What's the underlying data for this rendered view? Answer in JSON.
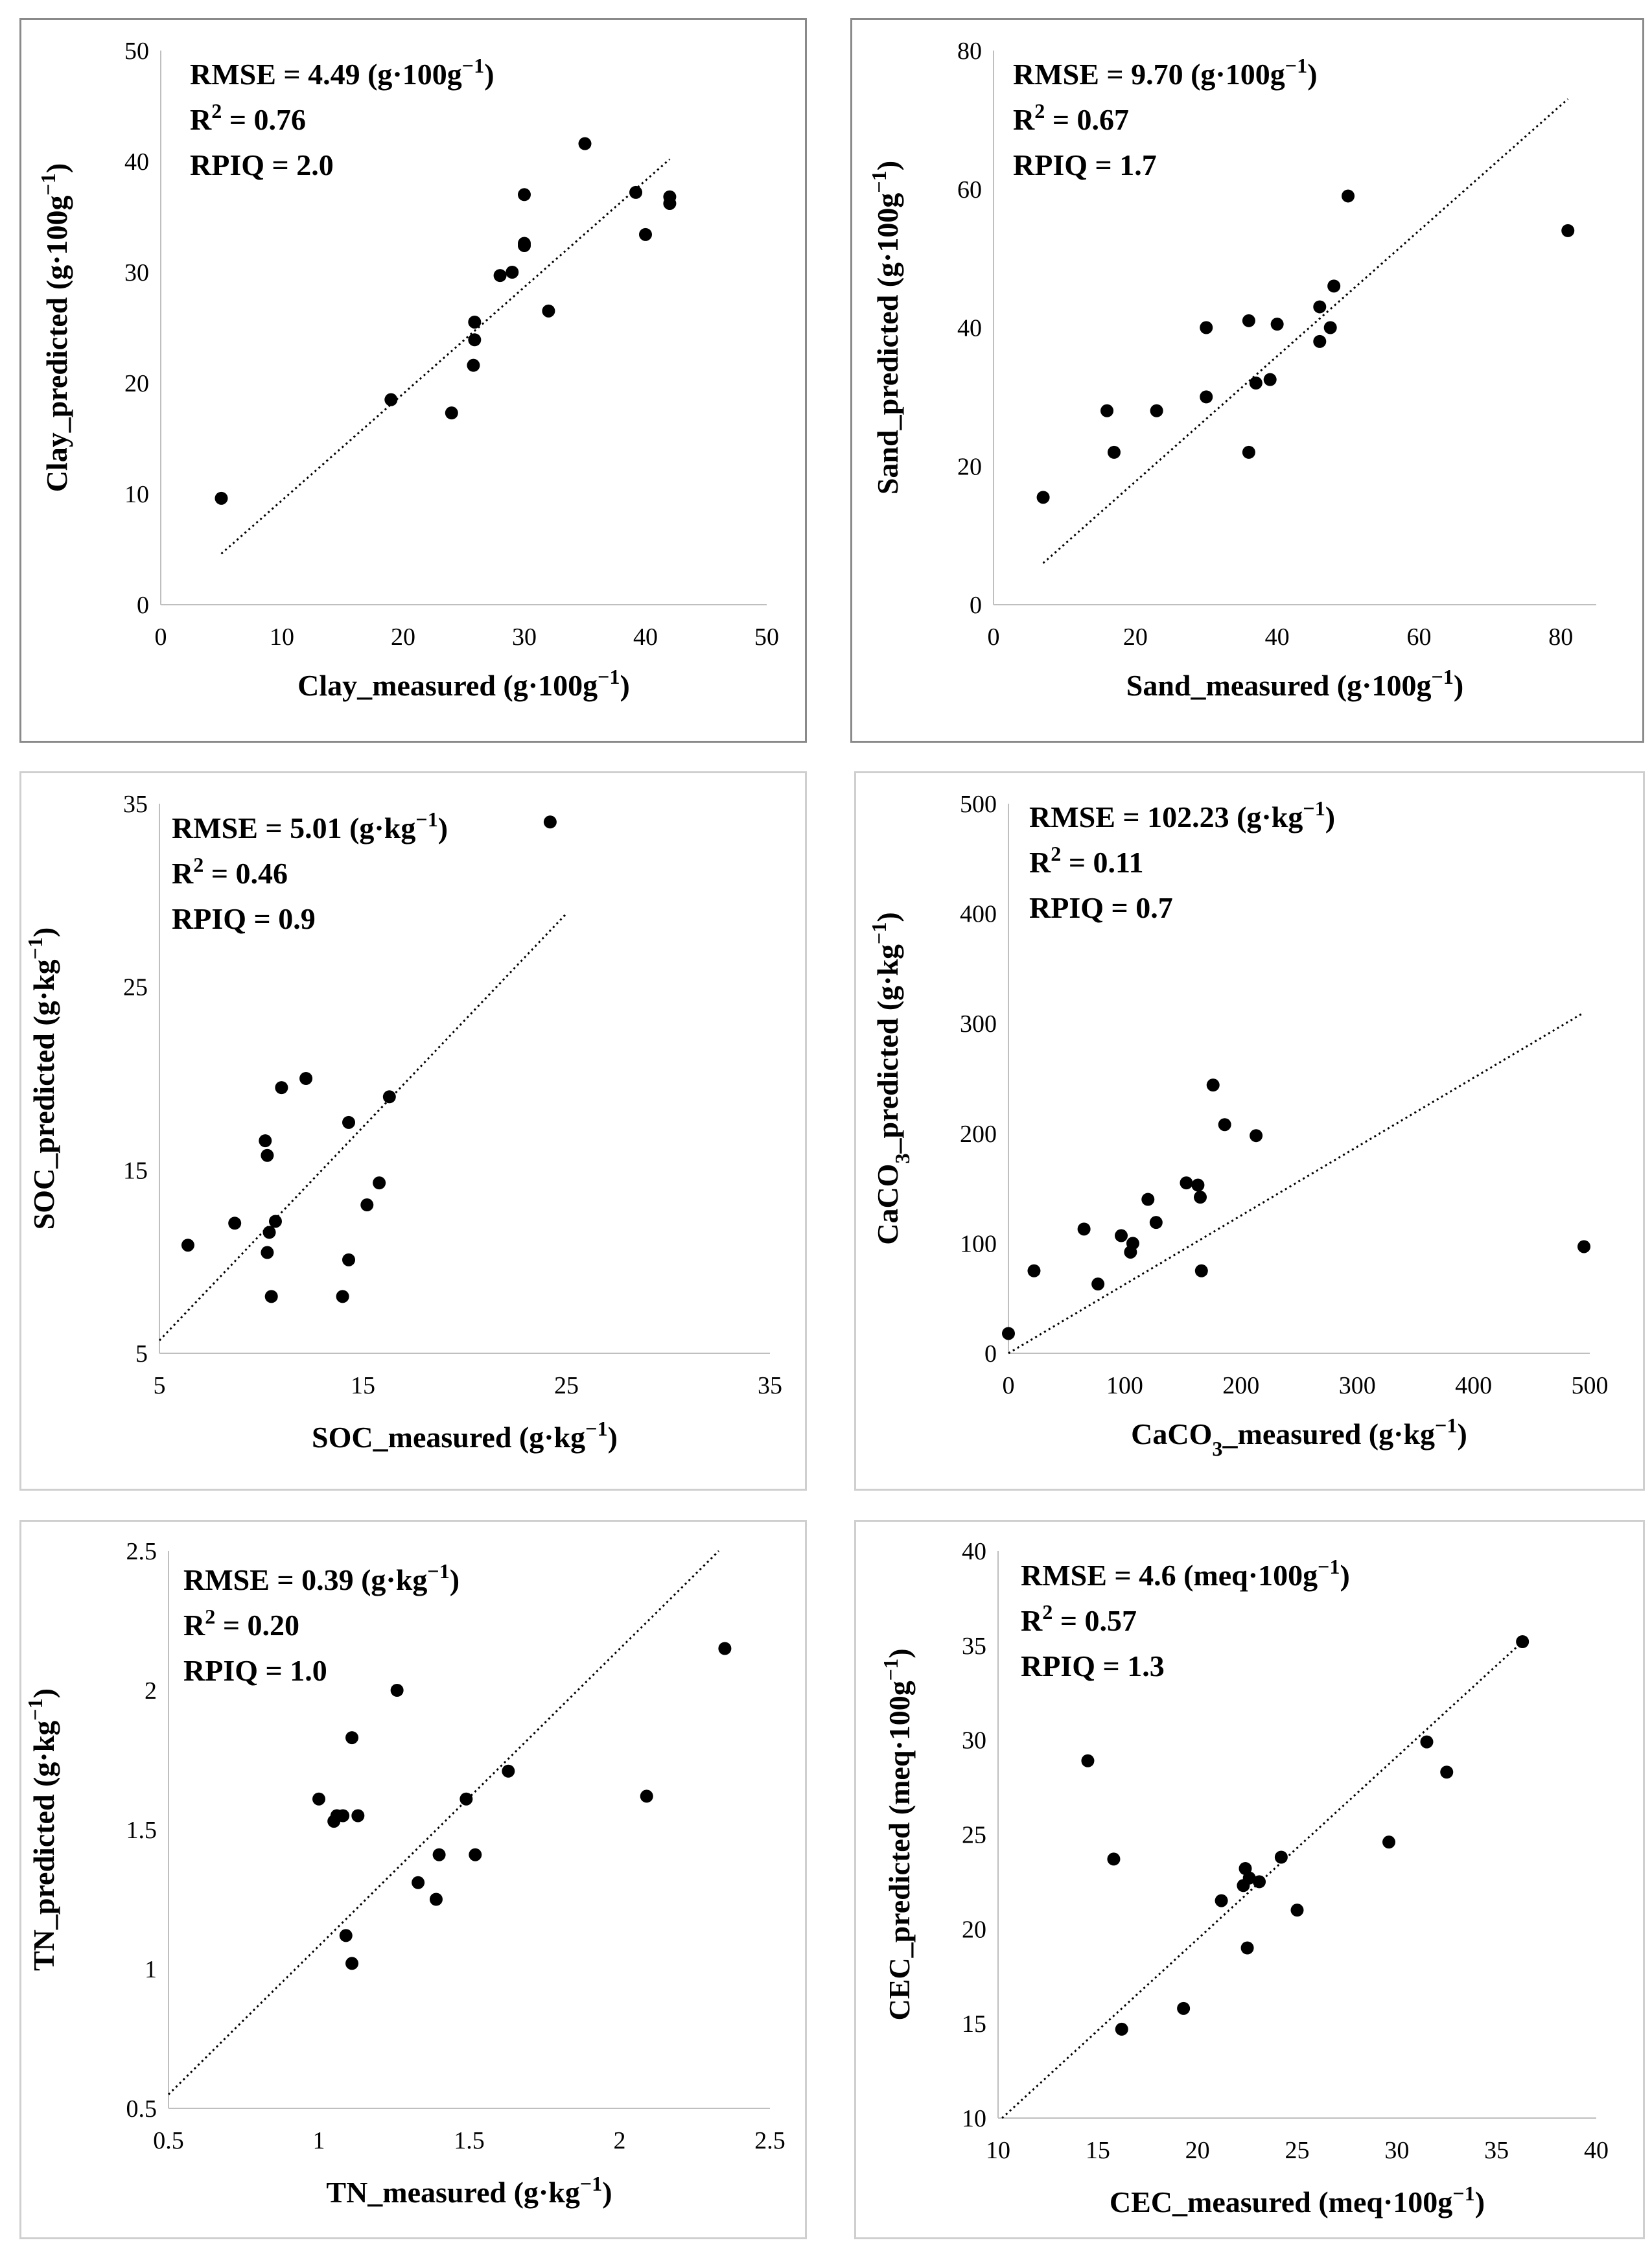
{
  "chart_data": [
    {
      "type": "scatter",
      "id": "clay",
      "title": "",
      "xlabel": "Clay_measured (g·100g⁻¹)",
      "ylabel": "Clay_predicted (g·100g⁻¹)",
      "xlim": [
        0,
        50
      ],
      "ylim": [
        0,
        50
      ],
      "xticks": [
        0,
        10,
        20,
        30,
        40,
        50
      ],
      "yticks": [
        0,
        10,
        20,
        30,
        40,
        50
      ],
      "xtick_labels": [
        "0",
        "10",
        "20",
        "30",
        "40",
        "50"
      ],
      "ytick_labels": [
        "0",
        "10",
        "20",
        "30",
        "40",
        "50"
      ],
      "stats": [
        "RMSE = 4.49 (g·100g⁻¹)",
        "R² = 0.76",
        "RPIQ = 2.0"
      ],
      "trendline": {
        "x": [
          5,
          42
        ],
        "y": [
          4.6,
          40.2
        ]
      },
      "points": {
        "x": [
          5,
          19,
          24,
          25.8,
          25.9,
          25.9,
          28,
          29,
          30,
          30,
          30,
          32,
          35,
          39.2,
          40,
          42,
          42
        ],
        "y": [
          9.6,
          18.5,
          17.3,
          21.6,
          23.9,
          25.5,
          29.7,
          30,
          32.4,
          32.6,
          37,
          26.5,
          41.6,
          37.2,
          33.4,
          36.2,
          36.8
        ]
      }
    },
    {
      "type": "scatter",
      "id": "sand",
      "title": "",
      "xlabel": "Sand_measured (g·100g⁻¹)",
      "ylabel": "Sand_predicted (g·100g⁻¹)",
      "xlim": [
        0,
        85
      ],
      "ylim": [
        0,
        80
      ],
      "xticks": [
        0,
        20,
        40,
        60,
        80
      ],
      "yticks": [
        0,
        20,
        40,
        60,
        80
      ],
      "xtick_labels": [
        "0",
        "20",
        "40",
        "60",
        "80"
      ],
      "ytick_labels": [
        "0",
        "20",
        "40",
        "60",
        "80"
      ],
      "stats": [
        "RMSE = 9.70 (g·100g⁻¹)",
        "R² = 0.67",
        "RPIQ = 1.7"
      ],
      "trendline": {
        "x": [
          7,
          81
        ],
        "y": [
          6,
          73
        ]
      },
      "points": {
        "x": [
          7,
          16,
          17,
          23,
          30,
          30,
          36,
          36,
          37,
          39,
          40,
          46,
          46,
          47.5,
          48,
          50,
          81
        ],
        "y": [
          15.5,
          28,
          22,
          28,
          30,
          40,
          22,
          41,
          32,
          32.5,
          40.5,
          38,
          43,
          40,
          46,
          59,
          54
        ]
      }
    },
    {
      "type": "scatter",
      "id": "soc",
      "title": "",
      "xlabel": "SOC_measured (g·kg⁻¹)",
      "ylabel": "SOC_predicted (g·kg⁻¹)",
      "xlim": [
        5,
        35
      ],
      "ylim": [
        5,
        35
      ],
      "xticks": [
        5,
        15,
        25,
        35
      ],
      "yticks": [
        5,
        15,
        25,
        35
      ],
      "xtick_labels": [
        "5",
        "15",
        "25",
        "35"
      ],
      "ytick_labels": [
        "5",
        "15",
        "25",
        "35"
      ],
      "stats": [
        "RMSE = 5.01 (g·kg⁻¹)",
        "R² = 0.46",
        "RPIQ = 0.9"
      ],
      "trendline": {
        "x": [
          5,
          25
        ],
        "y": [
          5.7,
          29
        ]
      },
      "points": {
        "x": [
          6.4,
          8.7,
          10.2,
          10.3,
          10.3,
          10.4,
          10.5,
          10.7,
          11,
          12.2,
          14,
          14.3,
          14.3,
          15.2,
          15.8,
          16.3,
          24.2
        ],
        "y": [
          10.9,
          12.1,
          16.6,
          15.8,
          10.5,
          11.6,
          8.1,
          12.2,
          19.5,
          20,
          8.1,
          10.1,
          17.6,
          13.1,
          14.3,
          19,
          34
        ]
      }
    },
    {
      "type": "scatter",
      "id": "caco3",
      "title": "",
      "xlabel": "CaCO₃_measured (g·kg⁻¹)",
      "ylabel": "CaCO₃_predicted (g·kg⁻¹)",
      "xlim": [
        0,
        500
      ],
      "ylim": [
        0,
        500
      ],
      "xticks": [
        0,
        100,
        200,
        300,
        400,
        500
      ],
      "yticks": [
        0,
        100,
        200,
        300,
        400,
        500
      ],
      "xtick_labels": [
        "0",
        "100",
        "200",
        "300",
        "400",
        "500"
      ],
      "ytick_labels": [
        "0",
        "100",
        "200",
        "300",
        "400",
        "500"
      ],
      "stats": [
        "RMSE = 102.23 (g·kg⁻¹)",
        "R² = 0.11",
        "RPIQ =  0.7"
      ],
      "trendline": {
        "x": [
          0,
          495
        ],
        "y": [
          0,
          310
        ]
      },
      "points": {
        "x": [
          0,
          22,
          65,
          77,
          97,
          105,
          107,
          120,
          127,
          153,
          163,
          165,
          166,
          176,
          186,
          213,
          495
        ],
        "y": [
          18,
          75,
          113,
          63,
          107,
          92,
          100,
          140,
          119,
          155,
          153,
          142,
          75,
          244,
          208,
          198,
          97
        ]
      }
    },
    {
      "type": "scatter",
      "id": "tn",
      "title": "",
      "xlabel": "TN_measured (g·kg⁻¹)",
      "ylabel": "TN_predicted (g·kg⁻¹)",
      "xlim": [
        0.5,
        2.5
      ],
      "ylim": [
        0.5,
        2.5
      ],
      "xticks": [
        0.5,
        1,
        1.5,
        2,
        2.5
      ],
      "yticks": [
        0.5,
        1,
        1.5,
        2,
        2.5
      ],
      "xtick_labels": [
        "0.5",
        "1",
        "1.5",
        "2",
        "2.5"
      ],
      "ytick_labels": [
        "0.5",
        "1",
        "1.5",
        "2",
        "2.5"
      ],
      "stats": [
        "RMSE = 0.39 (g·kg⁻¹)",
        "R² = 0.20",
        "RPIQ = 1.0"
      ],
      "trendline": {
        "x": [
          0.5,
          2.33
        ],
        "y": [
          0.55,
          2.5
        ]
      },
      "points": {
        "x": [
          1,
          1.05,
          1.06,
          1.08,
          1.09,
          1.11,
          1.11,
          1.13,
          1.26,
          1.33,
          1.39,
          1.4,
          1.49,
          1.52,
          1.63,
          2.09,
          2.35
        ],
        "y": [
          1.61,
          1.53,
          1.55,
          1.55,
          1.12,
          1.02,
          1.83,
          1.55,
          2,
          1.31,
          1.25,
          1.41,
          1.61,
          1.41,
          1.71,
          1.62,
          2.15
        ]
      }
    },
    {
      "type": "scatter",
      "id": "cec",
      "title": "",
      "xlabel": "CEC_measured (meq·100g⁻¹)",
      "ylabel": "CEC_predicted (meq·100g⁻¹)",
      "xlim": [
        10,
        40
      ],
      "ylim": [
        10,
        40
      ],
      "xticks": [
        10,
        15,
        20,
        25,
        30,
        35,
        40
      ],
      "yticks": [
        10,
        15,
        20,
        25,
        30,
        35,
        40
      ],
      "xtick_labels": [
        "10",
        "15",
        "20",
        "25",
        "30",
        "35",
        "40"
      ],
      "ytick_labels": [
        "10",
        "15",
        "20",
        "25",
        "30",
        "35",
        "40"
      ],
      "stats": [
        "RMSE = 4.6 (meq·100g⁻¹)",
        "R² = 0.57",
        "RPIQ = 1.3"
      ],
      "trendline": {
        "x": [
          10.2,
          36.3
        ],
        "y": [
          10,
          35.2
        ]
      },
      "points": {
        "x": [
          14.5,
          15.8,
          16.2,
          19.3,
          21.2,
          22.3,
          22.4,
          22.5,
          22.6,
          23.1,
          24.2,
          25,
          29.6,
          31.5,
          32.5,
          36.3
        ],
        "y": [
          28.9,
          23.7,
          14.7,
          15.8,
          21.5,
          22.3,
          23.2,
          19,
          22.7,
          22.5,
          23.8,
          21,
          24.6,
          29.9,
          28.3,
          35.2
        ]
      }
    }
  ]
}
